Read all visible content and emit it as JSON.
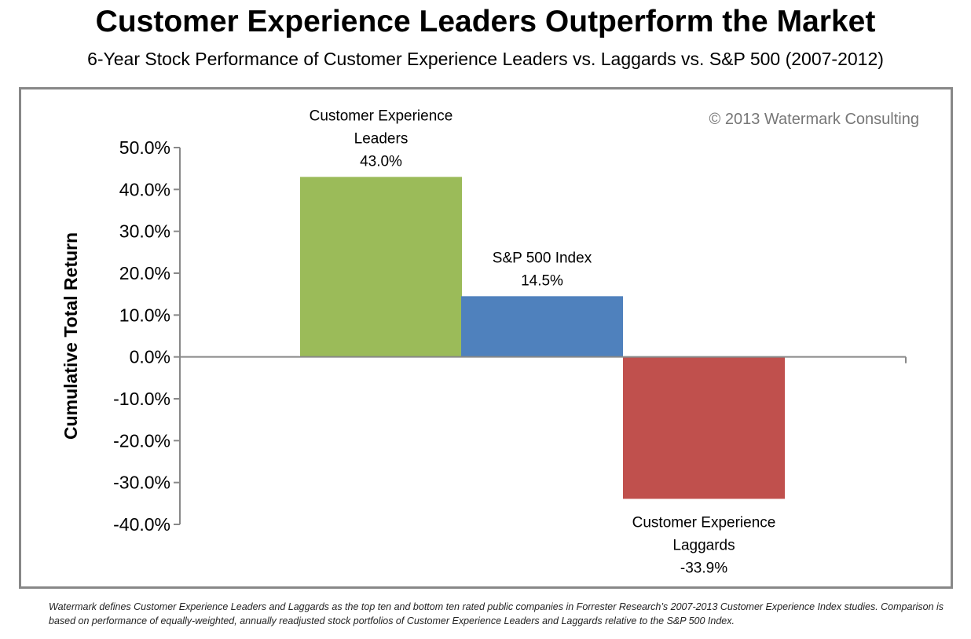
{
  "title": "Customer Experience Leaders Outperform the Market",
  "subtitle": "6-Year Stock Performance of Customer Experience Leaders vs. Laggards vs. S&P 500 (2007-2012)",
  "watermark": "© 2013 Watermark Consulting",
  "footnote": "Watermark defines Customer Experience Leaders and Laggards as the top ten and bottom ten rated public companies in Forrester Research’s 2007-2013  Customer Experience Index studies. Comparison is based on performance of equally-weighted, annually readjusted stock portfolios of Customer Experience Leaders and Laggards relative to the S&P 500 Index.",
  "chart_data": {
    "type": "bar",
    "title": "Customer Experience Leaders Outperform the Market",
    "ylabel": "Cumulative Total Return",
    "xlabel": "",
    "ylim": [
      -40,
      50
    ],
    "yticks": [
      "50.0%",
      "40.0%",
      "30.0%",
      "20.0%",
      "10.0%",
      "0.0%",
      "-10.0%",
      "-20.0%",
      "-30.0%",
      "-40.0%"
    ],
    "grid": false,
    "categories": [
      [
        "Customer Experience",
        "Leaders"
      ],
      [
        "S&P 500 Index"
      ],
      [
        "Customer Experience",
        "Laggards"
      ]
    ],
    "values": [
      43.0,
      14.5,
      -33.9
    ],
    "data_labels": [
      "43.0%",
      "14.5%",
      "-33.9%"
    ],
    "colors": [
      "#9bbb59",
      "#4f81bd",
      "#c0504d"
    ]
  }
}
